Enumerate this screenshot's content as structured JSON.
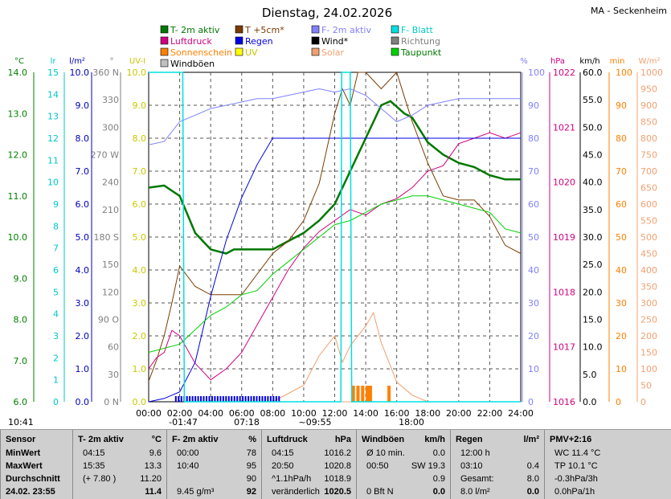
{
  "header": {
    "date": "Dienstag, 24.02.2026",
    "station": "MA - Seckenheim"
  },
  "legend": [
    {
      "label": "T- 2m aktiv",
      "color": "#007800",
      "text": "#007800"
    },
    {
      "label": "T +5cm*",
      "color": "#7a3c00",
      "text": "#7a3c00"
    },
    {
      "label": "F- 2m aktiv",
      "color": "#8080ff",
      "text": "#8080ff"
    },
    {
      "label": "F- Blatt",
      "color": "#00e0e0",
      "text": "#00c8c8"
    },
    {
      "label": "Luftdruck",
      "color": "#d00080",
      "text": "#d00080"
    },
    {
      "label": "Regen",
      "color": "#0000e0",
      "text": "#0000e0"
    },
    {
      "label": "Wind*",
      "color": "#000000",
      "text": "#000000"
    },
    {
      "label": "Richtung",
      "color": "#808080",
      "text": "#808080"
    },
    {
      "label": "Sonnenschein",
      "color": "#ff8000",
      "text": "#ff8000"
    },
    {
      "label": "UV",
      "color": "#ffff00",
      "text": "#c8c800"
    },
    {
      "label": "Solar",
      "color": "#f0a070",
      "text": "#f0a070"
    },
    {
      "label": "Taupunkt",
      "color": "#00d000",
      "text": "#007800"
    },
    {
      "label": "Windböen",
      "color": "#c0c0c0",
      "text": "#000000"
    }
  ],
  "axes": {
    "temp": {
      "unit": "°C",
      "ticks": [
        "14.0",
        "13.0",
        "12.0",
        "11.0",
        "10.0",
        "9.0",
        "8.0",
        "7.0",
        "6.0"
      ],
      "color": "#008000"
    },
    "leaf": {
      "unit": "lr",
      "ticks": [
        "15",
        "14",
        "13",
        "12",
        "11",
        "10",
        "9",
        "8",
        "7",
        "6",
        "5",
        "4",
        "3",
        "2",
        "1",
        "0"
      ],
      "color": "#00c8c8"
    },
    "rain": {
      "unit": "l/m²",
      "ticks": [
        "10.0",
        "9.0",
        "8.0",
        "7.0",
        "6.0",
        "5.0",
        "4.0",
        "3.0",
        "2.0",
        "1.0",
        "0.0"
      ],
      "color": "#0000c0"
    },
    "dir": {
      "unit": "°",
      "ticks": [
        "360 N",
        "330",
        "300",
        "270 W",
        "240",
        "210",
        "180 S",
        "150",
        "120",
        "90 O",
        "60",
        "30",
        "0 N"
      ],
      "color": "#808080"
    },
    "uv": {
      "unit": "UV-I",
      "ticks": [
        "10.0",
        "9.0",
        "8.0",
        "7.0",
        "6.0",
        "5.0",
        "4.0",
        "3.0",
        "2.0",
        "1.0",
        "0.0"
      ],
      "color": "#c8c800"
    },
    "hum": {
      "unit": "%",
      "ticks": [
        "100",
        "90",
        "80",
        "70",
        "60",
        "50",
        "40",
        "30",
        "20",
        "10",
        "0"
      ],
      "color": "#8080ff"
    },
    "press": {
      "unit": "hPa",
      "ticks": [
        "1022",
        "1021",
        "1020",
        "1019",
        "1018",
        "1017",
        "1016"
      ],
      "color": "#d00080"
    },
    "wind": {
      "unit": "km/h",
      "ticks": [
        "60.0",
        "55.0",
        "50.0",
        "45.0",
        "40.0",
        "35.0",
        "30.0",
        "25.0",
        "20.0",
        "15.0",
        "10.0",
        "5.0",
        "0.0"
      ],
      "color": "#000000"
    },
    "sun": {
      "unit": "min",
      "ticks": [
        "100",
        "90",
        "80",
        "70",
        "60",
        "50",
        "40",
        "30",
        "20",
        "10",
        "0"
      ],
      "color": "#ff8000"
    },
    "solar": {
      "unit": "W/m²",
      "ticks": [
        "1000",
        "950",
        "900",
        "850",
        "800",
        "750",
        "700",
        "650",
        "600",
        "550",
        "500",
        "450",
        "400",
        "350",
        "300",
        "250",
        "200",
        "150",
        "100",
        "50",
        "0"
      ],
      "color": "#f0a070"
    }
  },
  "time_ticks": [
    "00:00",
    "02:00",
    "04:00",
    "06:00",
    "08:00",
    "10:00",
    "12:00",
    "14:00",
    "16:00",
    "18:00",
    "20:00",
    "22:00",
    "24:00"
  ],
  "markers": {
    "moonrise": "10:41",
    "sunrise": "07:18",
    "sunset": "18:00",
    "low": "-01:47",
    "high": "~09:55"
  },
  "chart_data": {
    "type": "line",
    "x_unit": "hours",
    "series": [
      {
        "name": "T- 2m aktiv",
        "axis": "temp",
        "points": [
          [
            0,
            11.2
          ],
          [
            1,
            11.25
          ],
          [
            2,
            11.0
          ],
          [
            3,
            10.1
          ],
          [
            4,
            9.7
          ],
          [
            5,
            9.6
          ],
          [
            5.5,
            9.7
          ],
          [
            6,
            9.7
          ],
          [
            8,
            9.7
          ],
          [
            9,
            9.9
          ],
          [
            10,
            10.1
          ],
          [
            11,
            10.4
          ],
          [
            12,
            10.8
          ],
          [
            13,
            11.6
          ],
          [
            14,
            12.4
          ],
          [
            15,
            13.2
          ],
          [
            15.6,
            13.3
          ],
          [
            16.5,
            13.0
          ],
          [
            17,
            12.9
          ],
          [
            18,
            12.3
          ],
          [
            19,
            12.0
          ],
          [
            20,
            11.8
          ],
          [
            21,
            11.7
          ],
          [
            22,
            11.5
          ],
          [
            23,
            11.4
          ],
          [
            24,
            11.4
          ]
        ]
      },
      {
        "name": "T +5cm*",
        "axis": "temp",
        "points": [
          [
            0,
            6.5
          ],
          [
            0.5,
            7.0
          ],
          [
            1,
            7.6
          ],
          [
            1.5,
            8.4
          ],
          [
            2,
            9.3
          ],
          [
            3,
            8.8
          ],
          [
            4,
            8.6
          ],
          [
            6,
            8.6
          ],
          [
            8,
            9.6
          ],
          [
            9,
            9.9
          ],
          [
            10,
            10.4
          ],
          [
            11,
            11.3
          ],
          [
            12,
            13.0
          ],
          [
            12.5,
            13.6
          ],
          [
            13,
            13.2
          ],
          [
            13.5,
            14.0
          ],
          [
            14,
            14.0
          ],
          [
            15,
            13.6
          ],
          [
            16,
            14.0
          ],
          [
            16.5,
            13.4
          ],
          [
            17,
            12.8
          ],
          [
            18,
            11.8
          ],
          [
            19,
            11.0
          ],
          [
            20,
            10.9
          ],
          [
            21,
            10.9
          ],
          [
            22,
            10.5
          ],
          [
            23,
            9.8
          ],
          [
            24,
            9.6
          ]
        ]
      },
      {
        "name": "F- 2m aktiv",
        "axis": "hum",
        "points": [
          [
            0,
            78
          ],
          [
            1,
            79
          ],
          [
            2,
            85
          ],
          [
            3,
            87
          ],
          [
            4,
            89
          ],
          [
            5,
            90
          ],
          [
            6,
            91
          ],
          [
            7,
            92
          ],
          [
            8,
            92
          ],
          [
            10,
            94
          ],
          [
            11,
            95
          ],
          [
            12,
            94
          ],
          [
            13,
            95
          ],
          [
            14,
            93
          ],
          [
            15,
            89
          ],
          [
            16,
            85
          ],
          [
            17,
            87
          ],
          [
            18,
            90
          ],
          [
            20,
            92
          ],
          [
            22,
            92
          ],
          [
            24,
            92
          ]
        ]
      },
      {
        "name": "Luftdruck",
        "axis": "press",
        "points": [
          [
            0,
            1016.6
          ],
          [
            0.5,
            1016.8
          ],
          [
            1,
            1016.9
          ],
          [
            1.5,
            1017.3
          ],
          [
            2,
            1017.2
          ],
          [
            3,
            1016.7
          ],
          [
            4,
            1016.4
          ],
          [
            5,
            1016.6
          ],
          [
            6,
            1016.9
          ],
          [
            7,
            1017.4
          ],
          [
            8,
            1017.9
          ],
          [
            9,
            1018.4
          ],
          [
            10,
            1018.8
          ],
          [
            11,
            1019.1
          ],
          [
            12,
            1019.3
          ],
          [
            13,
            1019.5
          ],
          [
            14,
            1019.4
          ],
          [
            15,
            1019.6
          ],
          [
            16,
            1019.7
          ],
          [
            17,
            1019.9
          ],
          [
            18,
            1020.2
          ],
          [
            19,
            1020.3
          ],
          [
            20,
            1020.7
          ],
          [
            21,
            1020.8
          ],
          [
            22,
            1020.9
          ],
          [
            23,
            1020.8
          ],
          [
            24,
            1020.9
          ]
        ]
      },
      {
        "name": "Regen",
        "axis": "rain",
        "points": [
          [
            0,
            0.0
          ],
          [
            1,
            0.1
          ],
          [
            2,
            0.3
          ],
          [
            3,
            1.2
          ],
          [
            4,
            3.2
          ],
          [
            5,
            4.9
          ],
          [
            6,
            6.2
          ],
          [
            7,
            7.2
          ],
          [
            8,
            8.0
          ],
          [
            24,
            8.0
          ]
        ]
      },
      {
        "name": "Taupunkt",
        "axis": "temp",
        "points": [
          [
            0,
            7.2
          ],
          [
            2,
            7.4
          ],
          [
            4,
            8.1
          ],
          [
            5,
            8.3
          ],
          [
            6,
            8.6
          ],
          [
            7,
            8.7
          ],
          [
            8,
            9.1
          ],
          [
            9,
            9.4
          ],
          [
            10,
            9.7
          ],
          [
            11,
            10.0
          ],
          [
            12,
            10.3
          ],
          [
            13,
            10.4
          ],
          [
            14,
            10.6
          ],
          [
            15,
            10.8
          ],
          [
            16,
            10.9
          ],
          [
            17,
            11.0
          ],
          [
            18,
            11.0
          ],
          [
            19,
            10.9
          ],
          [
            20,
            10.8
          ],
          [
            21,
            10.7
          ],
          [
            22,
            10.6
          ],
          [
            23,
            10.2
          ],
          [
            24,
            10.1
          ]
        ]
      },
      {
        "name": "F- Blatt",
        "axis": "leaf",
        "points": [
          [
            0,
            15
          ],
          [
            2.2,
            15
          ],
          [
            2.3,
            0
          ],
          [
            12.4,
            0
          ],
          [
            12.45,
            15
          ],
          [
            13.0,
            15
          ],
          [
            13.1,
            0
          ],
          [
            24,
            0
          ]
        ]
      }
    ],
    "solar": {
      "axis": "solar",
      "points": [
        [
          8,
          0
        ],
        [
          10,
          50
        ],
        [
          11,
          140
        ],
        [
          12,
          200
        ],
        [
          12.5,
          120
        ],
        [
          13,
          170
        ],
        [
          14,
          230
        ],
        [
          14.5,
          270
        ],
        [
          15,
          180
        ],
        [
          16,
          60
        ],
        [
          17,
          20
        ],
        [
          18,
          0
        ]
      ]
    }
  },
  "table": {
    "columns": [
      {
        "title": "Sensor",
        "unit": "",
        "rows": [
          [
            "MinWert",
            ""
          ],
          [
            "MaxWert",
            ""
          ],
          [
            "Durchschnitt",
            ""
          ],
          [
            "24.02. 23:55",
            ""
          ]
        ]
      },
      {
        "title": "T- 2m aktiv",
        "unit": "°C",
        "rows": [
          [
            "04:15",
            "9.6"
          ],
          [
            "15:35",
            "13.3"
          ],
          [
            "(+ 7.80 )",
            "11.20"
          ],
          [
            "",
            "11.4"
          ]
        ]
      },
      {
        "title": "F- 2m aktiv",
        "unit": "%",
        "rows": [
          [
            "00:00",
            "78"
          ],
          [
            "10:40",
            "95"
          ],
          [
            "",
            "90"
          ],
          [
            "9.45 g/m³",
            "92"
          ]
        ]
      },
      {
        "title": "Luftdruck",
        "unit": "hPa",
        "rows": [
          [
            "04:15",
            "1016.2"
          ],
          [
            "20:50",
            "1020.8"
          ],
          [
            "^1.1hPa/h",
            "1018.9"
          ],
          [
            "veränderlich",
            "1020.5"
          ]
        ]
      },
      {
        "title": "Windböen",
        "unit": "km/h",
        "rows": [
          [
            "Ø 10 min.",
            "0.0"
          ],
          [
            "00:50",
            "SW 19.3"
          ],
          [
            "",
            "0.9"
          ],
          [
            "0 Bft N",
            "0.0"
          ]
        ]
      },
      {
        "title": "Regen",
        "unit": "l/m²",
        "rows": [
          [
            "12:00 h",
            ""
          ],
          [
            "03:10",
            "0.4"
          ],
          [
            "Gesamt:",
            "8.0"
          ],
          [
            "8.0 l/m²",
            "0.0"
          ]
        ]
      },
      {
        "title": "PMV+2:16",
        "unit": "",
        "rows": [
          [
            "WC 11.4 °C",
            ""
          ],
          [
            "TP 10.1 °C",
            ""
          ],
          [
            "-0.3hPa/3h",
            ""
          ],
          [
            "0.0hPa/1h",
            ""
          ]
        ]
      }
    ]
  }
}
